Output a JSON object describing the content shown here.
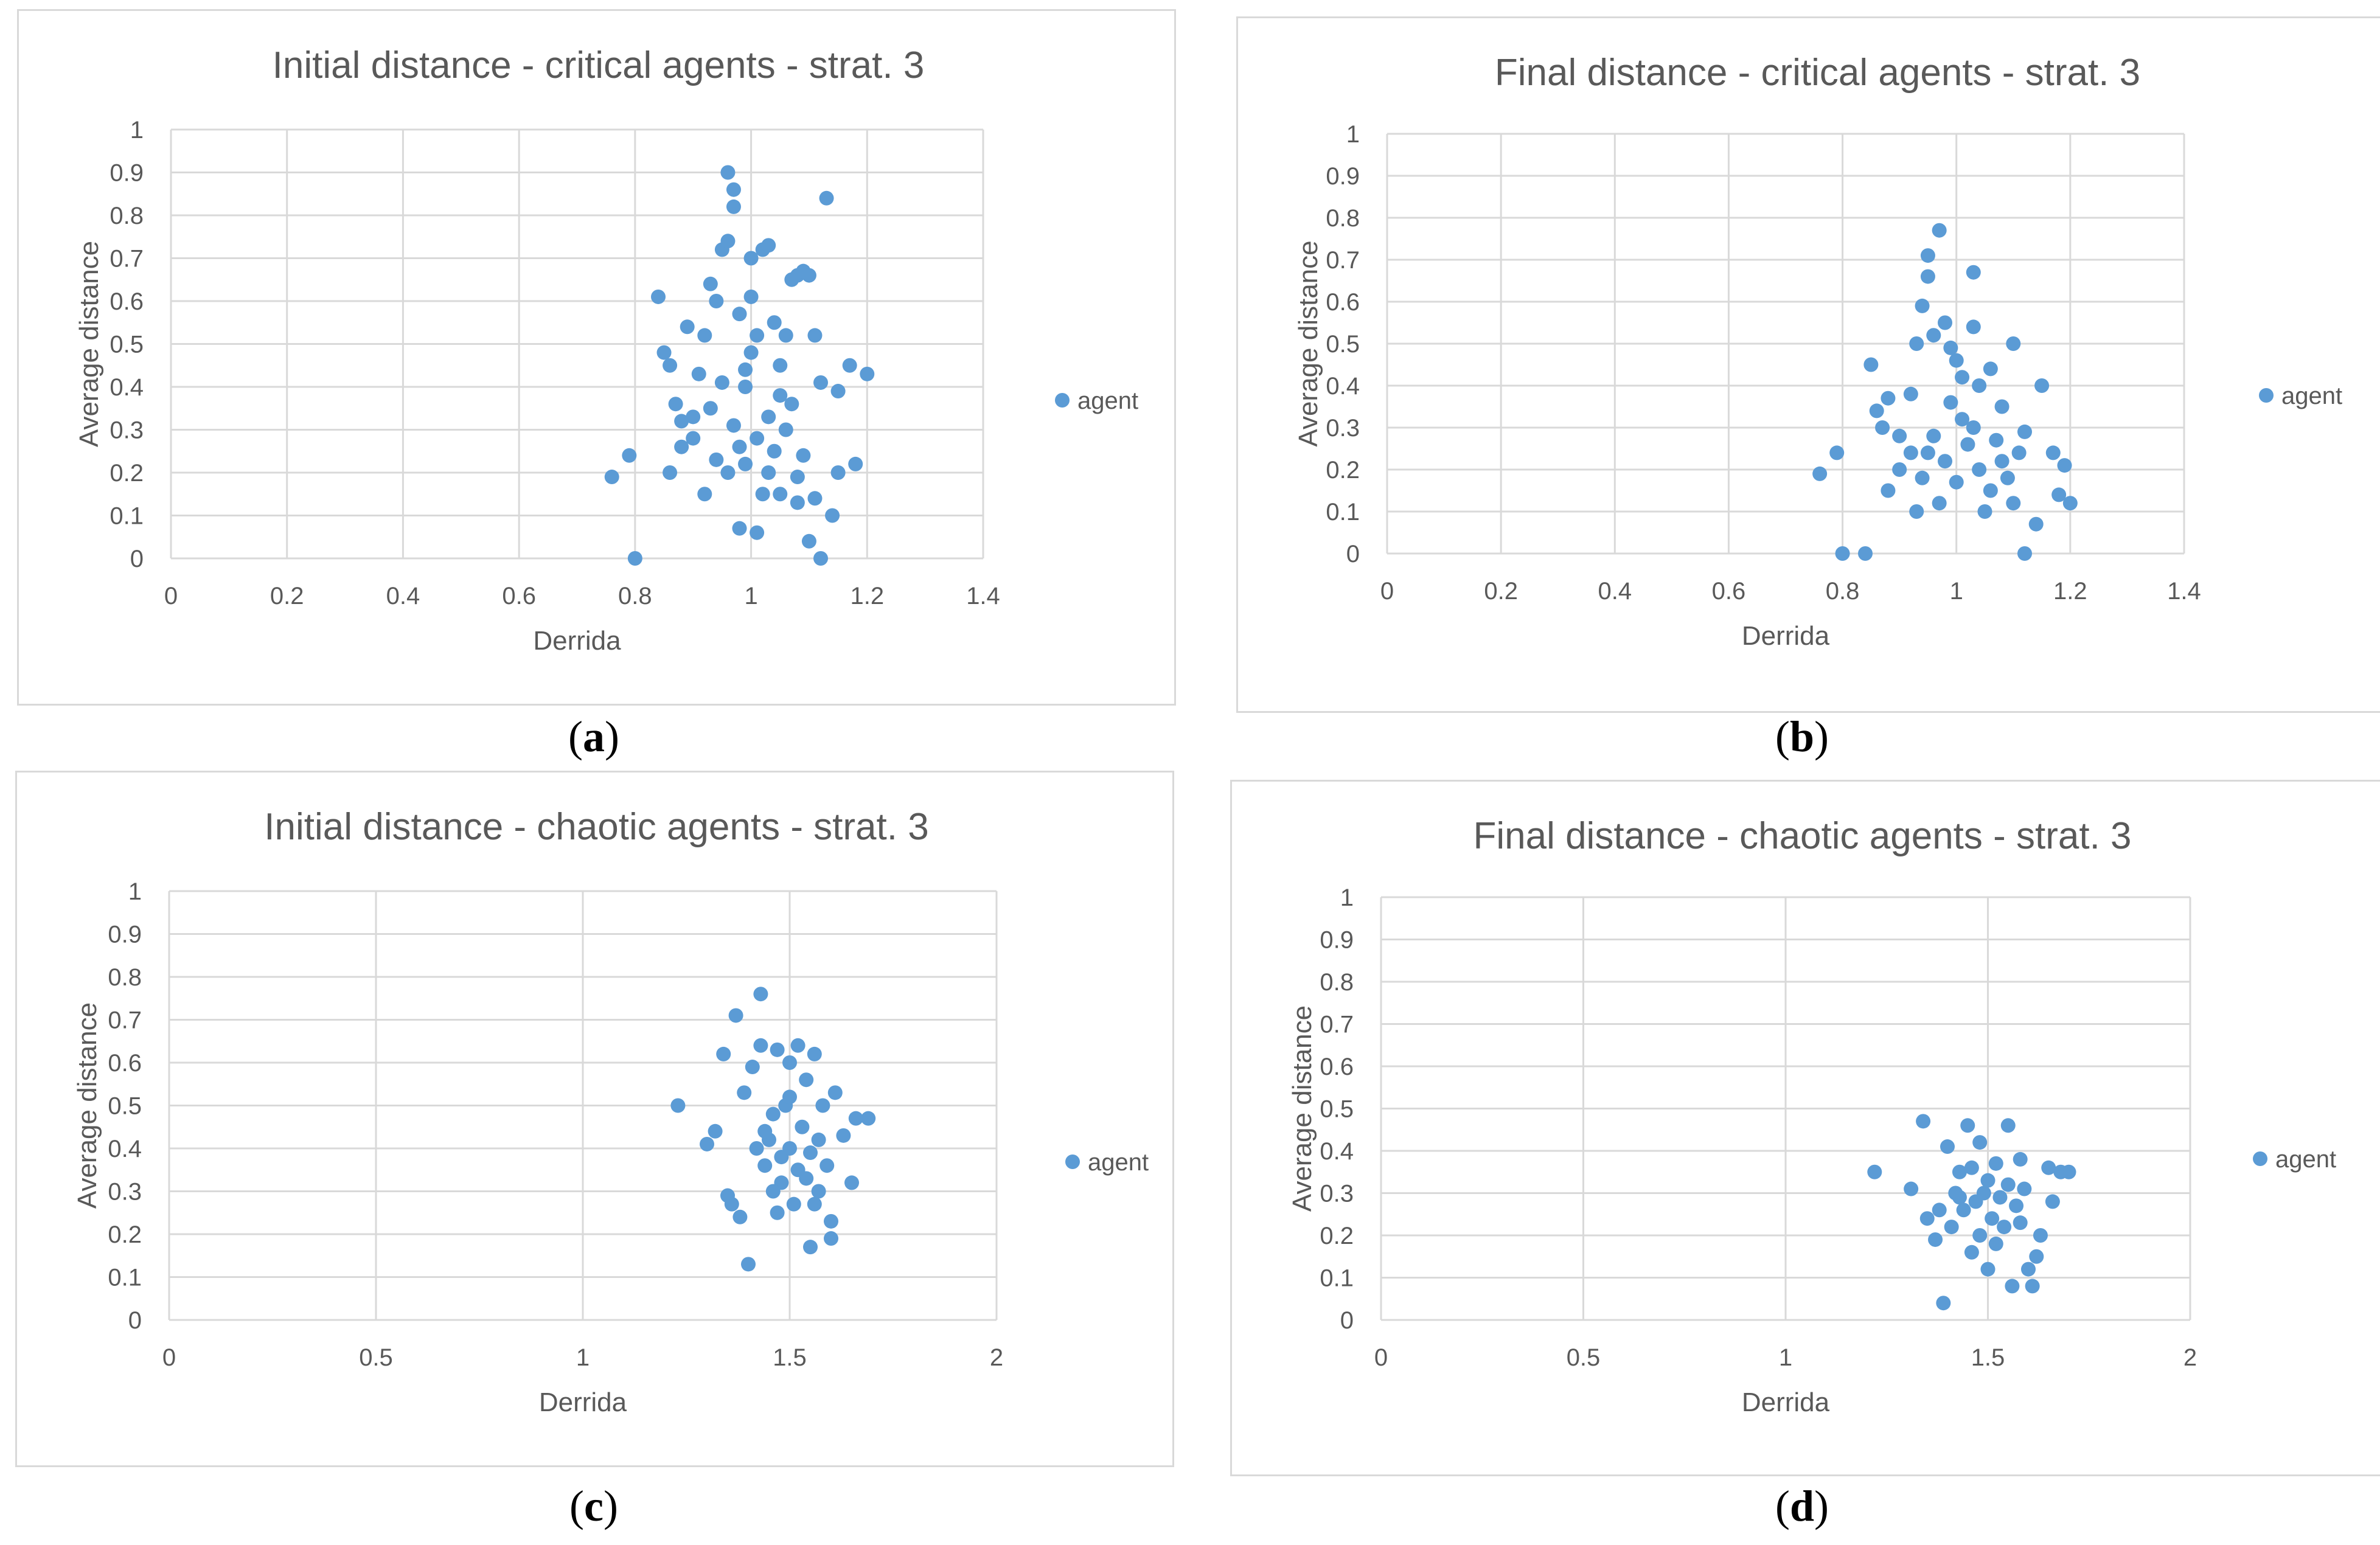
{
  "captions": [
    "a",
    "b",
    "c",
    "d"
  ],
  "legend_marker_color": "#5b9bd5",
  "chart_data": [
    {
      "type": "scatter",
      "title": "Initial distance - critical agents - strat. 3",
      "xlabel": "Derrida",
      "ylabel": "Average distance",
      "legend": "agent",
      "xlim": [
        0,
        1.4
      ],
      "xticks": [
        0,
        0.2,
        0.4,
        0.6,
        0.8,
        1,
        1.2,
        1.4
      ],
      "ylim": [
        0,
        1
      ],
      "yticks": [
        0,
        0.1,
        0.2,
        0.3,
        0.4,
        0.5,
        0.6,
        0.7,
        0.8,
        0.9,
        1
      ],
      "points": [
        [
          0.76,
          0.19
        ],
        [
          0.79,
          0.24
        ],
        [
          0.8,
          0.0
        ],
        [
          0.84,
          0.61
        ],
        [
          0.85,
          0.48
        ],
        [
          0.86,
          0.45
        ],
        [
          0.87,
          0.36
        ],
        [
          0.88,
          0.32
        ],
        [
          0.89,
          0.54
        ],
        [
          0.9,
          0.28
        ],
        [
          0.91,
          0.43
        ],
        [
          0.92,
          0.52
        ],
        [
          0.93,
          0.64
        ],
        [
          0.94,
          0.6
        ],
        [
          0.95,
          0.72
        ],
        [
          0.96,
          0.74
        ],
        [
          0.96,
          0.9
        ],
        [
          0.97,
          0.86
        ],
        [
          0.97,
          0.82
        ],
        [
          0.98,
          0.57
        ],
        [
          0.99,
          0.4
        ],
        [
          1.0,
          0.61
        ],
        [
          1.0,
          0.7
        ],
        [
          1.01,
          0.52
        ],
        [
          1.02,
          0.72
        ],
        [
          1.03,
          0.73
        ],
        [
          1.04,
          0.55
        ],
        [
          1.05,
          0.45
        ],
        [
          1.06,
          0.52
        ],
        [
          1.07,
          0.65
        ],
        [
          1.08,
          0.66
        ],
        [
          1.09,
          0.67
        ],
        [
          1.1,
          0.66
        ],
        [
          1.11,
          0.52
        ],
        [
          1.12,
          0.41
        ],
        [
          1.13,
          0.84
        ],
        [
          1.15,
          0.39
        ],
        [
          1.17,
          0.45
        ],
        [
          1.18,
          0.22
        ],
        [
          1.2,
          0.43
        ],
        [
          1.14,
          0.1
        ],
        [
          1.15,
          0.2
        ],
        [
          1.1,
          0.04
        ],
        [
          1.12,
          0.0
        ],
        [
          0.86,
          0.2
        ],
        [
          0.88,
          0.26
        ],
        [
          0.9,
          0.33
        ],
        [
          0.93,
          0.35
        ],
        [
          0.95,
          0.41
        ],
        [
          0.97,
          0.31
        ],
        [
          0.98,
          0.26
        ],
        [
          0.99,
          0.22
        ],
        [
          1.01,
          0.28
        ],
        [
          1.03,
          0.33
        ],
        [
          1.04,
          0.25
        ],
        [
          1.06,
          0.3
        ],
        [
          1.07,
          0.36
        ],
        [
          1.08,
          0.19
        ],
        [
          1.02,
          0.15
        ],
        [
          0.99,
          0.44
        ],
        [
          1.0,
          0.48
        ],
        [
          1.05,
          0.38
        ],
        [
          0.94,
          0.23
        ],
        [
          0.96,
          0.2
        ],
        [
          1.03,
          0.2
        ],
        [
          1.05,
          0.15
        ],
        [
          1.08,
          0.13
        ],
        [
          1.01,
          0.06
        ],
        [
          0.98,
          0.07
        ],
        [
          1.11,
          0.14
        ],
        [
          1.09,
          0.24
        ],
        [
          0.92,
          0.15
        ]
      ]
    },
    {
      "type": "scatter",
      "title": "Final distance - critical agents - strat. 3",
      "xlabel": "Derrida",
      "ylabel": "Average distance",
      "legend": "agent",
      "xlim": [
        0,
        1.4
      ],
      "xticks": [
        0,
        0.2,
        0.4,
        0.6,
        0.8,
        1,
        1.2,
        1.4
      ],
      "ylim": [
        0,
        1
      ],
      "yticks": [
        0,
        0.1,
        0.2,
        0.3,
        0.4,
        0.5,
        0.6,
        0.7,
        0.8,
        0.9,
        1
      ],
      "points": [
        [
          0.76,
          0.19
        ],
        [
          0.79,
          0.24
        ],
        [
          0.8,
          0.0
        ],
        [
          0.84,
          0.0
        ],
        [
          0.85,
          0.45
        ],
        [
          0.86,
          0.34
        ],
        [
          0.87,
          0.3
        ],
        [
          0.88,
          0.37
        ],
        [
          0.9,
          0.28
        ],
        [
          0.92,
          0.38
        ],
        [
          0.93,
          0.5
        ],
        [
          0.94,
          0.59
        ],
        [
          0.95,
          0.71
        ],
        [
          0.95,
          0.66
        ],
        [
          0.96,
          0.52
        ],
        [
          0.97,
          0.77
        ],
        [
          0.98,
          0.55
        ],
        [
          0.99,
          0.49
        ],
        [
          1.0,
          0.46
        ],
        [
          1.01,
          0.42
        ],
        [
          1.03,
          0.67
        ],
        [
          1.03,
          0.54
        ],
        [
          1.04,
          0.4
        ],
        [
          1.06,
          0.44
        ],
        [
          1.08,
          0.35
        ],
        [
          1.1,
          0.5
        ],
        [
          1.12,
          0.29
        ],
        [
          1.15,
          0.4
        ],
        [
          1.17,
          0.24
        ],
        [
          1.19,
          0.21
        ],
        [
          1.2,
          0.12
        ],
        [
          1.18,
          0.14
        ],
        [
          1.14,
          0.07
        ],
        [
          1.12,
          0.0
        ],
        [
          0.88,
          0.15
        ],
        [
          0.9,
          0.2
        ],
        [
          0.92,
          0.24
        ],
        [
          0.94,
          0.18
        ],
        [
          0.96,
          0.28
        ],
        [
          0.98,
          0.22
        ],
        [
          1.0,
          0.17
        ],
        [
          1.02,
          0.26
        ],
        [
          1.04,
          0.2
        ],
        [
          1.06,
          0.15
        ],
        [
          1.08,
          0.22
        ],
        [
          1.1,
          0.12
        ],
        [
          1.01,
          0.32
        ],
        [
          0.99,
          0.36
        ],
        [
          0.97,
          0.12
        ],
        [
          1.05,
          0.1
        ],
        [
          0.93,
          0.1
        ],
        [
          1.07,
          0.27
        ],
        [
          1.03,
          0.3
        ],
        [
          0.95,
          0.24
        ],
        [
          1.09,
          0.18
        ],
        [
          1.11,
          0.24
        ]
      ]
    },
    {
      "type": "scatter",
      "title": "Initial distance - chaotic agents - strat. 3",
      "xlabel": "Derrida",
      "ylabel": "Average distance",
      "legend": "agent",
      "xlim": [
        0,
        2
      ],
      "xticks": [
        0,
        0.5,
        1,
        1.5,
        2
      ],
      "ylim": [
        0,
        1
      ],
      "yticks": [
        0,
        0.1,
        0.2,
        0.3,
        0.4,
        0.5,
        0.6,
        0.7,
        0.8,
        0.9,
        1
      ],
      "points": [
        [
          1.23,
          0.5
        ],
        [
          1.3,
          0.41
        ],
        [
          1.32,
          0.44
        ],
        [
          1.34,
          0.62
        ],
        [
          1.35,
          0.29
        ],
        [
          1.36,
          0.27
        ],
        [
          1.37,
          0.71
        ],
        [
          1.38,
          0.24
        ],
        [
          1.39,
          0.53
        ],
        [
          1.4,
          0.13
        ],
        [
          1.41,
          0.59
        ],
        [
          1.43,
          0.76
        ],
        [
          1.43,
          0.64
        ],
        [
          1.44,
          0.36
        ],
        [
          1.46,
          0.48
        ],
        [
          1.47,
          0.63
        ],
        [
          1.48,
          0.32
        ],
        [
          1.5,
          0.6
        ],
        [
          1.52,
          0.64
        ],
        [
          1.54,
          0.56
        ],
        [
          1.55,
          0.17
        ],
        [
          1.56,
          0.62
        ],
        [
          1.58,
          0.5
        ],
        [
          1.6,
          0.23
        ],
        [
          1.6,
          0.19
        ],
        [
          1.61,
          0.53
        ],
        [
          1.63,
          0.43
        ],
        [
          1.65,
          0.32
        ],
        [
          1.66,
          0.47
        ],
        [
          1.69,
          0.47
        ],
        [
          1.45,
          0.42
        ],
        [
          1.48,
          0.38
        ],
        [
          1.5,
          0.4
        ],
        [
          1.52,
          0.35
        ],
        [
          1.53,
          0.45
        ],
        [
          1.55,
          0.39
        ],
        [
          1.57,
          0.3
        ],
        [
          1.51,
          0.27
        ],
        [
          1.49,
          0.5
        ],
        [
          1.46,
          0.3
        ],
        [
          1.44,
          0.44
        ],
        [
          1.54,
          0.33
        ],
        [
          1.57,
          0.42
        ],
        [
          1.59,
          0.36
        ],
        [
          1.47,
          0.25
        ],
        [
          1.42,
          0.4
        ],
        [
          1.5,
          0.52
        ],
        [
          1.56,
          0.27
        ]
      ]
    },
    {
      "type": "scatter",
      "title": "Final distance - chaotic agents - strat. 3",
      "xlabel": "Derrida",
      "ylabel": "Average distance",
      "legend": "agent",
      "xlim": [
        0,
        2
      ],
      "xticks": [
        0,
        0.5,
        1,
        1.5,
        2
      ],
      "ylim": [
        0,
        1
      ],
      "yticks": [
        0,
        0.1,
        0.2,
        0.3,
        0.4,
        0.5,
        0.6,
        0.7,
        0.8,
        0.9,
        1
      ],
      "points": [
        [
          1.22,
          0.35
        ],
        [
          1.31,
          0.31
        ],
        [
          1.34,
          0.47
        ],
        [
          1.35,
          0.24
        ],
        [
          1.37,
          0.19
        ],
        [
          1.39,
          0.04
        ],
        [
          1.4,
          0.41
        ],
        [
          1.42,
          0.3
        ],
        [
          1.43,
          0.35
        ],
        [
          1.45,
          0.46
        ],
        [
          1.46,
          0.16
        ],
        [
          1.48,
          0.42
        ],
        [
          1.5,
          0.12
        ],
        [
          1.52,
          0.37
        ],
        [
          1.55,
          0.46
        ],
        [
          1.56,
          0.08
        ],
        [
          1.58,
          0.38
        ],
        [
          1.6,
          0.12
        ],
        [
          1.61,
          0.08
        ],
        [
          1.62,
          0.15
        ],
        [
          1.63,
          0.2
        ],
        [
          1.65,
          0.36
        ],
        [
          1.66,
          0.28
        ],
        [
          1.68,
          0.35
        ],
        [
          1.7,
          0.35
        ],
        [
          1.44,
          0.26
        ],
        [
          1.47,
          0.28
        ],
        [
          1.49,
          0.3
        ],
        [
          1.51,
          0.24
        ],
        [
          1.53,
          0.29
        ],
        [
          1.54,
          0.22
        ],
        [
          1.57,
          0.27
        ],
        [
          1.59,
          0.31
        ],
        [
          1.48,
          0.2
        ],
        [
          1.5,
          0.33
        ],
        [
          1.46,
          0.36
        ],
        [
          1.52,
          0.18
        ],
        [
          1.41,
          0.22
        ],
        [
          1.55,
          0.32
        ],
        [
          1.58,
          0.23
        ],
        [
          1.43,
          0.29
        ],
        [
          1.38,
          0.26
        ]
      ]
    }
  ]
}
